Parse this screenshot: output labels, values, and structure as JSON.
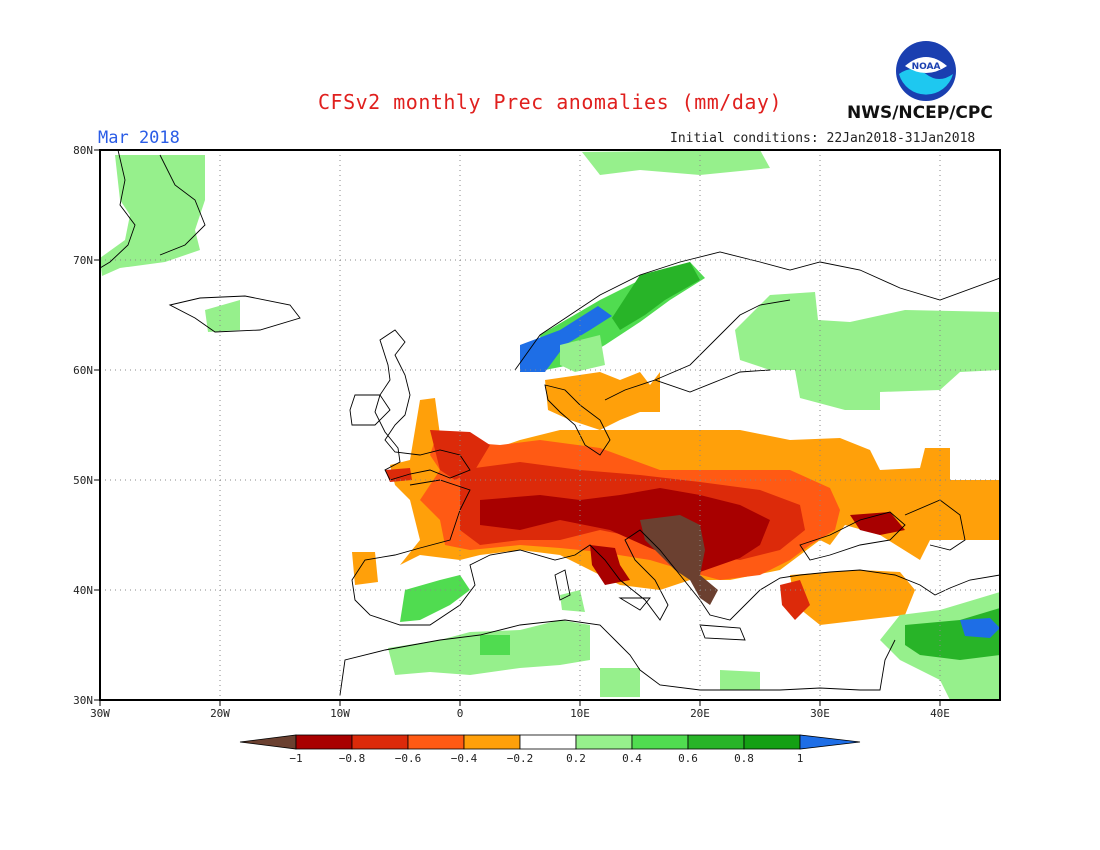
{
  "title": "CFSv2 monthly Prec anomalies (mm/day)",
  "month": "Mar 2018",
  "initial_conditions": "Initial conditions: 22Jan2018-31Jan2018",
  "agency": "NWS/NCEP/CPC",
  "logo_text": "NOAA",
  "map": {
    "lon_ticks": [
      "30W",
      "20W",
      "10W",
      "0",
      "10E",
      "20E",
      "30E",
      "40E"
    ],
    "lat_ticks": [
      "80N",
      "70N",
      "60N",
      "50N",
      "40N",
      "30N"
    ],
    "grid": "dotted"
  },
  "legend": {
    "labels": [
      "-1",
      "-0.8",
      "-0.6",
      "-0.4",
      "-0.2",
      "0.2",
      "0.4",
      "0.6",
      "0.8",
      "1"
    ],
    "colors": [
      "#6b4030",
      "#a80000",
      "#dc2a0a",
      "#ff5a14",
      "#ffa00a",
      "#ffffff",
      "#96f08c",
      "#50dc50",
      "#28b428",
      "#14a014",
      "#1e6ee6"
    ]
  },
  "colors": {
    "title": "#e0201e",
    "month": "#2a5ce6",
    "brown": "#6b4030",
    "darkred": "#a80000",
    "red": "#dc2a0a",
    "orangered": "#ff5a14",
    "orange": "#ffa00a",
    "lightgreen": "#96f08c",
    "green": "#50dc50",
    "blue": "#1e6ee6"
  }
}
